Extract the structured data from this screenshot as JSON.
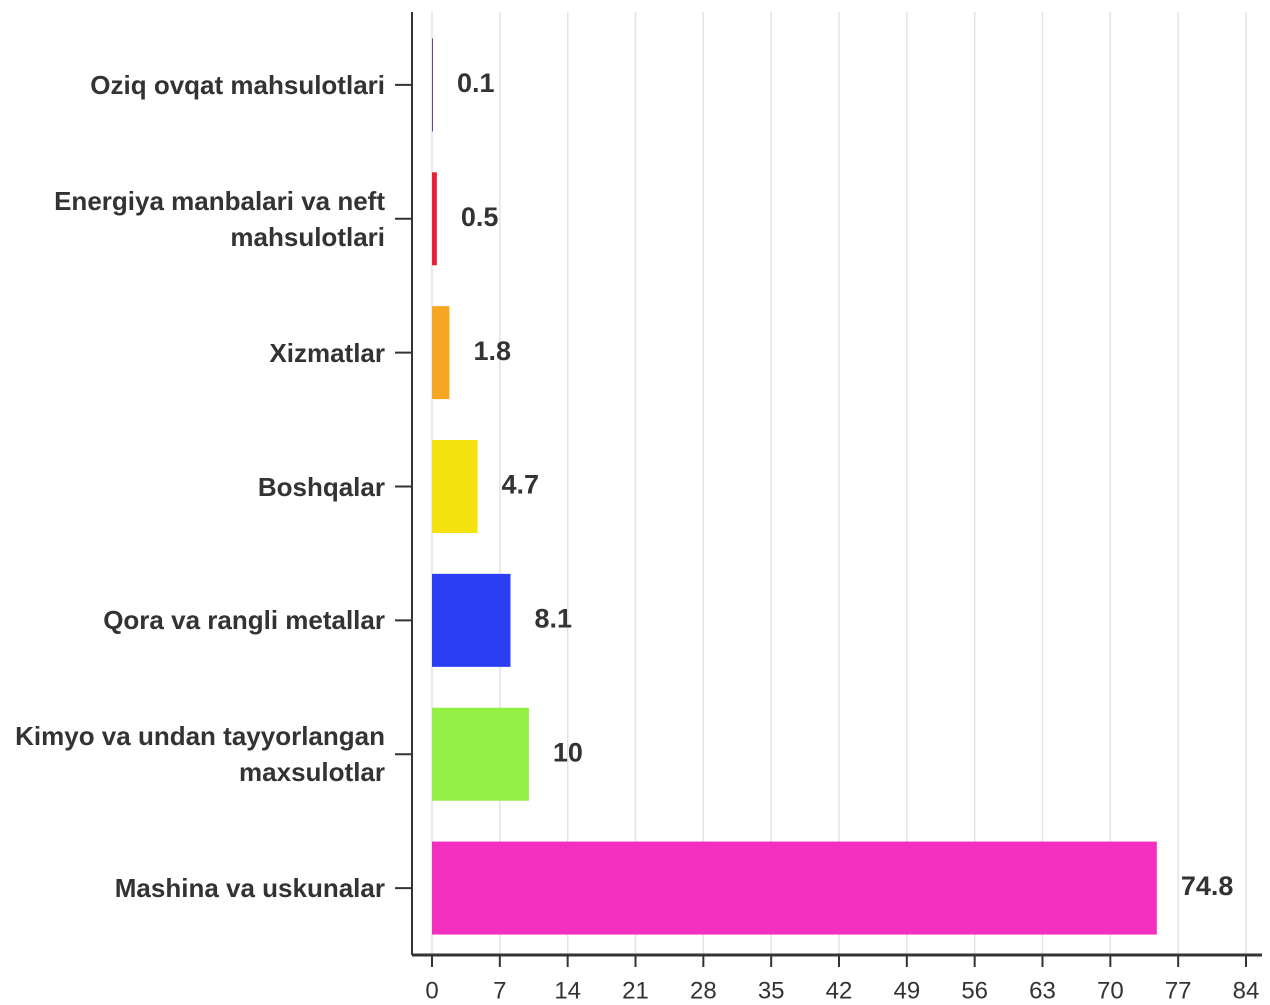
{
  "chart_data": {
    "type": "bar",
    "orientation": "horizontal",
    "categories": [
      "Oziq ovqat mahsulotlari",
      "Energiya manbalari va neft mahsulotlari",
      "Xizmatlar",
      "Boshqalar",
      "Qora va rangli metallar",
      "Kimyo va undan tayyorlangan maxsulotlar",
      "Mashina va uskunalar"
    ],
    "values": [
      0.1,
      0.5,
      1.8,
      4.7,
      8.1,
      10,
      74.8
    ],
    "colors": [
      "#6a3d9a",
      "#e8203a",
      "#f5a623",
      "#f4e20f",
      "#2b3ff2",
      "#93ef44",
      "#f22fbe"
    ],
    "xlim": [
      0,
      84
    ],
    "xticks": [
      0,
      7,
      14,
      21,
      28,
      35,
      42,
      49,
      56,
      63,
      70,
      77,
      84
    ],
    "grid": true
  }
}
